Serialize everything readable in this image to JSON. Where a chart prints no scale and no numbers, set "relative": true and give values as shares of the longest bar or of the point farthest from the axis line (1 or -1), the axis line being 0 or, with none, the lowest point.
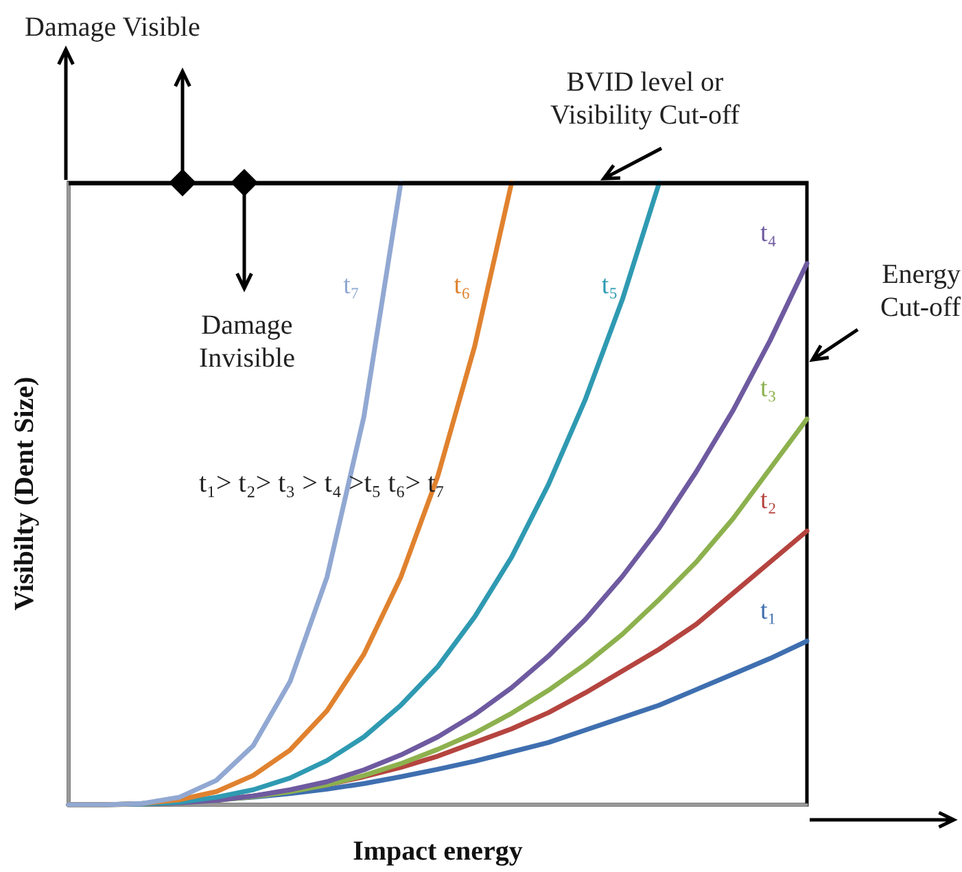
{
  "chart_data": {
    "type": "line",
    "relative": true,
    "xlabel": "Impact energy",
    "ylabel": "Visibilty (Dent Size)",
    "categories": [
      null,
      null,
      null,
      null,
      null,
      null,
      null,
      null,
      null,
      null,
      null,
      null,
      null,
      null,
      null,
      null,
      null,
      null,
      null,
      null,
      null
    ],
    "series": [
      {
        "name": "t₁",
        "color": "#3f6fb0",
        "values": [
          0,
          0,
          0.002,
          0.004,
          0.008,
          0.012,
          0.018,
          0.025,
          0.034,
          0.045,
          0.057,
          0.07,
          0.085,
          0.1,
          0.12,
          0.14,
          0.16,
          0.185,
          0.21,
          0.235,
          0.263
        ]
      },
      {
        "name": "t₂",
        "color": "#b5443f",
        "values": [
          0,
          0,
          0.001,
          0.003,
          0.008,
          0.014,
          0.022,
          0.032,
          0.045,
          0.06,
          0.078,
          0.1,
          0.122,
          0.148,
          0.18,
          0.215,
          0.25,
          0.29,
          0.34,
          0.39,
          0.44
        ]
      },
      {
        "name": "t₃",
        "color": "#8db14e",
        "values": [
          0,
          0,
          0.001,
          0.003,
          0.007,
          0.013,
          0.021,
          0.032,
          0.047,
          0.066,
          0.089,
          0.115,
          0.147,
          0.184,
          0.226,
          0.274,
          0.33,
          0.39,
          0.46,
          0.54,
          0.62
        ]
      },
      {
        "name": "t₄",
        "color": "#6e5aa0",
        "values": [
          0,
          0,
          0.001,
          0.003,
          0.007,
          0.014,
          0.024,
          0.037,
          0.056,
          0.08,
          0.109,
          0.145,
          0.188,
          0.239,
          0.298,
          0.367,
          0.445,
          0.535,
          0.634,
          0.746,
          0.87
        ]
      },
      {
        "name": "t₅",
        "color": "#2f9ab2",
        "values": [
          0,
          0,
          0.001,
          0.004,
          0.012,
          0.024,
          0.043,
          0.071,
          0.109,
          0.16,
          0.222,
          0.302,
          0.398,
          0.515,
          0.652,
          0.812,
          1,
          null,
          null,
          null,
          null
        ]
      },
      {
        "name": "t₆",
        "color": "#e0822f",
        "values": [
          0,
          0,
          0.002,
          0.008,
          0.021,
          0.047,
          0.088,
          0.151,
          0.242,
          0.366,
          0.528,
          0.737,
          1,
          null,
          null,
          null,
          null,
          null,
          null,
          null,
          null
        ]
      },
      {
        "name": "t₇",
        "color": "#91a8d2",
        "values": [
          0,
          0,
          0.002,
          0.012,
          0.039,
          0.095,
          0.198,
          0.366,
          0.624,
          1,
          null,
          null,
          null,
          null,
          null,
          null,
          null,
          null,
          null,
          null,
          null
        ]
      }
    ],
    "ref_lines": [
      {
        "axis": "y",
        "value": 1,
        "label": "BVID level or Visibility Cut-off",
        "color": "#000000"
      }
    ],
    "annotations": [
      "Damage Visible",
      "Damage Invisible",
      "Energy Cut-off",
      "t₁> t₂> t₃ > t₄ >t₅  t₆> t₇"
    ],
    "legend": false,
    "grid": false,
    "marker": "none",
    "line_style": "solid"
  }
}
